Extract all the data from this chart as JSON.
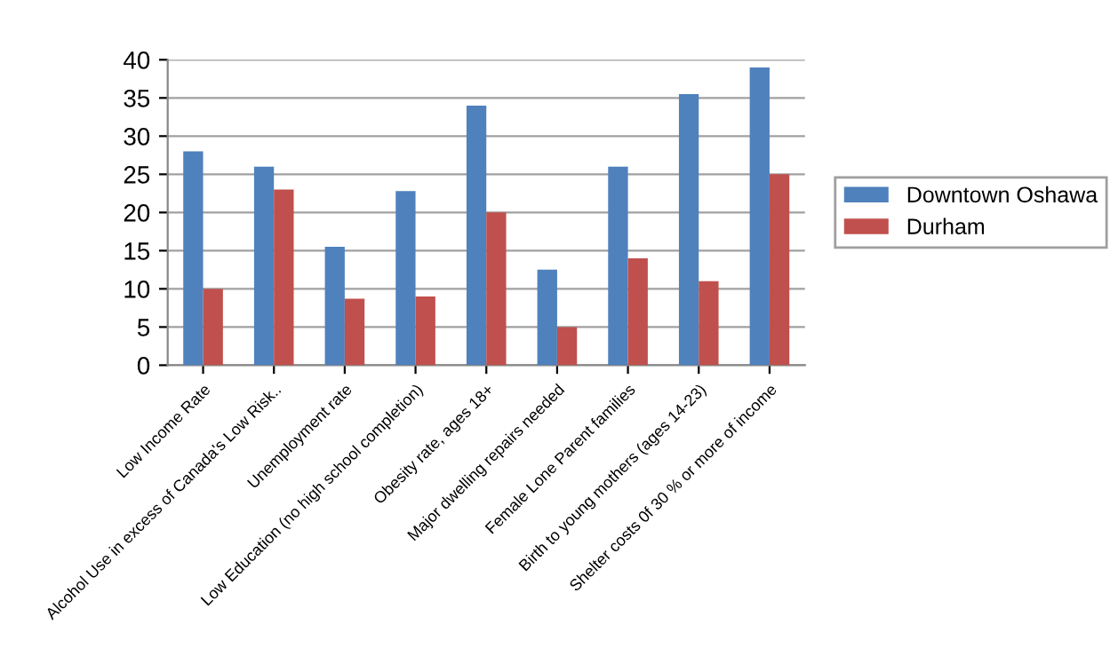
{
  "chart_data": {
    "type": "bar",
    "categories": [
      "Low Income Rate",
      "Alcohol Use in excess of Canada's Low Risk..",
      "Unemployment rate",
      "Low Education (no high school completion)",
      "Obesity rate, ages 18+",
      "Major dwelling repairs needed",
      "Female Lone Parent families",
      "Birth to young mothers (ages 14-23)",
      "Shelter costs 0f 30 % or more of income"
    ],
    "series": [
      {
        "name": "Downtown Oshawa",
        "color": "#4f81bd",
        "values": [
          28,
          26,
          15.5,
          22.8,
          34,
          12.5,
          26,
          35.5,
          39
        ]
      },
      {
        "name": "Durham",
        "color": "#c0504d",
        "values": [
          10,
          23,
          8.7,
          9,
          20,
          5,
          14,
          11,
          25
        ]
      }
    ],
    "ylim": [
      0,
      40
    ],
    "yticks": [
      0,
      5,
      10,
      15,
      20,
      25,
      30,
      35,
      40
    ],
    "grid": "y",
    "legend": "right"
  }
}
